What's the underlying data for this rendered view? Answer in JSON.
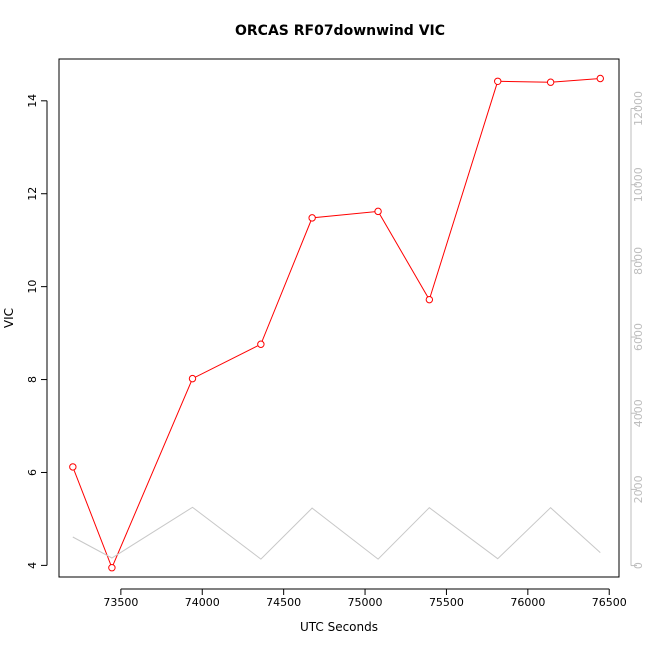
{
  "chart_data": {
    "type": "line",
    "title": "ORCAS RF07downwind VIC",
    "xlabel": "UTC Seconds",
    "ylabel": "VIC",
    "xlim": [
      73120,
      76560
    ],
    "ylim": [
      3.75,
      14.9
    ],
    "y2lim": [
      -300,
      13300
    ],
    "x_ticks": [
      73500,
      74000,
      74500,
      75000,
      75500,
      76000,
      76500
    ],
    "y_ticks": [
      4,
      6,
      8,
      10,
      12,
      14
    ],
    "y2_ticks": [
      0,
      2000,
      4000,
      6000,
      8000,
      10000,
      12000
    ],
    "grid": false,
    "colors": {
      "primary": "#ff0000",
      "secondary": "#c8c8c8",
      "axis": "#000000",
      "right_axis": "#bdbdbd"
    },
    "series": [
      {
        "axis": "left",
        "style": "line-markers",
        "x": [
          73205,
          73445,
          73940,
          74360,
          74675,
          75080,
          75395,
          75815,
          76140,
          76445
        ],
        "y": [
          6.12,
          3.95,
          8.02,
          8.76,
          11.48,
          11.62,
          9.72,
          14.42,
          14.4,
          14.48
        ]
      },
      {
        "axis": "right",
        "style": "line",
        "x": [
          73205,
          73445,
          73940,
          74360,
          74675,
          75080,
          75395,
          75815,
          76140,
          76445
        ],
        "y": [
          750,
          200,
          1530,
          170,
          1510,
          170,
          1520,
          180,
          1520,
          340
        ]
      }
    ]
  }
}
